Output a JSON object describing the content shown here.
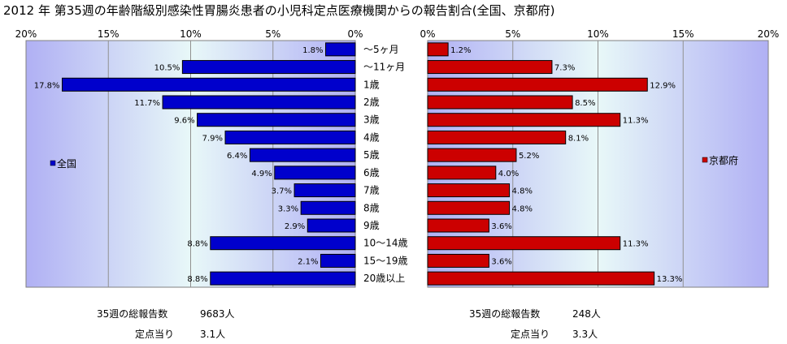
{
  "title": "2012 年 第35週の年齢階級別感染性胃腸炎患者の小児科定点医療機関からの報告割合(全国、京都府)",
  "chart_data": {
    "type": "bar",
    "orientation": "horizontal",
    "categories": [
      "～5ヶ月",
      "～11ヶ月",
      "1歳",
      "2歳",
      "3歳",
      "4歳",
      "5歳",
      "6歳",
      "7歳",
      "8歳",
      "9歳",
      "10～14歳",
      "15～19歳",
      "20歳以上"
    ],
    "xlim": [
      0,
      20
    ],
    "x_ticks": [
      "20%",
      "15%",
      "10%",
      "5%",
      "0%"
    ],
    "x_ticks_right": [
      "0%",
      "5%",
      "10%",
      "15%",
      "20%"
    ],
    "grid": true,
    "legend_placement": "inside-middle",
    "series": [
      {
        "name": "全国",
        "side": "left",
        "color": "#0000cc",
        "values": [
          1.8,
          10.5,
          17.8,
          11.7,
          9.6,
          7.9,
          6.4,
          4.9,
          3.7,
          3.3,
          2.9,
          8.8,
          2.1,
          8.8
        ],
        "labels": [
          "1.8%",
          "10.5%",
          "17.8%",
          "11.7%",
          "9.6%",
          "7.9%",
          "6.4%",
          "4.9%",
          "3.7%",
          "3.3%",
          "2.9%",
          "8.8%",
          "2.1%",
          "8.8%"
        ]
      },
      {
        "name": "京都府",
        "side": "right",
        "color": "#cc0000",
        "values": [
          1.2,
          7.3,
          12.9,
          8.5,
          11.3,
          8.1,
          5.2,
          4.0,
          4.8,
          4.8,
          3.6,
          11.3,
          3.6,
          13.3
        ],
        "labels": [
          "1.2%",
          "7.3%",
          "12.9%",
          "8.5%",
          "11.3%",
          "8.1%",
          "5.2%",
          "4.0%",
          "4.8%",
          "4.8%",
          "3.6%",
          "11.3%",
          "3.6%",
          "13.3%"
        ]
      }
    ]
  },
  "footer": {
    "left": {
      "total_label": "35週の総報告数",
      "total_value": "9683人",
      "per_label": "定点当り",
      "per_value": "3.1人"
    },
    "right": {
      "total_label": "35週の総報告数",
      "total_value": "248人",
      "per_label": "定点当り",
      "per_value": "3.3人"
    }
  }
}
